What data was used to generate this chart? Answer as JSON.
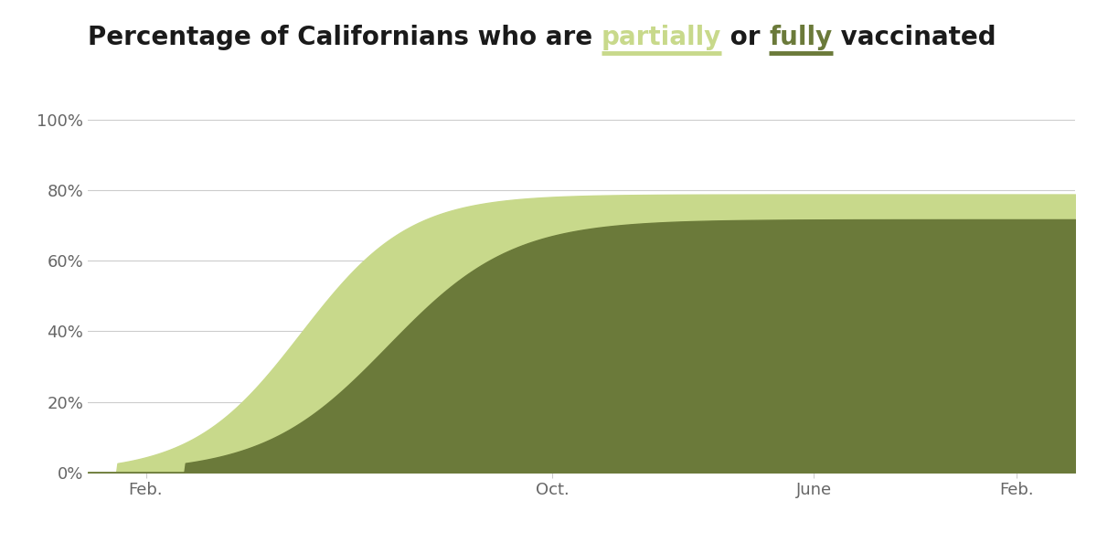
{
  "color_partial": "#c8d98b",
  "color_full": "#6b7a3a",
  "background_color": "#ffffff",
  "tick_color": "#666666",
  "grid_color": "#cccccc",
  "title_color": "#1a1a1a",
  "ylim": [
    0,
    100
  ],
  "yticks": [
    0,
    20,
    40,
    60,
    80,
    100
  ],
  "ytick_labels": [
    "0%",
    "20%",
    "40%",
    "60%",
    "80%",
    "100%"
  ],
  "xtick_positions": [
    30,
    240,
    375,
    480
  ],
  "xtick_labels": [
    "Feb.",
    "Oct.",
    "June",
    "Feb."
  ],
  "xlim": [
    0,
    510
  ],
  "figsize": [
    12.0,
    5.94
  ],
  "dpi": 100,
  "title_fontsize": 20,
  "tick_fontsize": 13,
  "final_partial": 78.8,
  "final_full": 71.7,
  "title_parts": [
    {
      "text": "Percentage of Californians who are ",
      "color": "#1a1a1a",
      "underline": false
    },
    {
      "text": "partially",
      "color": "#c8d98b",
      "underline": true
    },
    {
      "text": " or ",
      "color": "#1a1a1a",
      "underline": false
    },
    {
      "text": "fully",
      "color": "#6b7a3a",
      "underline": true
    },
    {
      "text": " vaccinated",
      "color": "#1a1a1a",
      "underline": false
    }
  ]
}
